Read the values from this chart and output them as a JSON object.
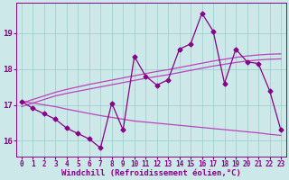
{
  "xlabel": "Windchill (Refroidissement éolien,°C)",
  "bg_color": "#cce8e8",
  "line_color": "#880088",
  "trend_color": "#bb44bb",
  "x_values": [
    0,
    1,
    2,
    3,
    4,
    5,
    6,
    7,
    8,
    9,
    10,
    11,
    12,
    13,
    14,
    15,
    16,
    17,
    18,
    19,
    20,
    21,
    22,
    23
  ],
  "y_main": [
    17.1,
    16.9,
    16.75,
    16.6,
    16.35,
    16.2,
    16.05,
    15.8,
    17.05,
    16.3,
    18.35,
    17.8,
    17.55,
    17.7,
    18.55,
    18.7,
    19.55,
    19.05,
    17.6,
    18.55,
    18.2,
    18.15,
    17.4,
    16.3
  ],
  "y_trend_up1": [
    16.95,
    17.05,
    17.15,
    17.25,
    17.32,
    17.38,
    17.44,
    17.5,
    17.56,
    17.62,
    17.68,
    17.74,
    17.79,
    17.84,
    17.9,
    17.96,
    18.02,
    18.08,
    18.13,
    18.18,
    18.22,
    18.25,
    18.27,
    18.28
  ],
  "y_trend_up2": [
    17.05,
    17.15,
    17.25,
    17.35,
    17.43,
    17.5,
    17.57,
    17.63,
    17.69,
    17.75,
    17.81,
    17.87,
    17.93,
    17.98,
    18.04,
    18.1,
    18.16,
    18.22,
    18.27,
    18.32,
    18.36,
    18.39,
    18.41,
    18.42
  ],
  "y_trend_down": [
    17.1,
    17.05,
    17.0,
    16.95,
    16.88,
    16.82,
    16.76,
    16.7,
    16.65,
    16.6,
    16.55,
    16.52,
    16.49,
    16.46,
    16.43,
    16.4,
    16.37,
    16.34,
    16.31,
    16.28,
    16.25,
    16.22,
    16.18,
    16.15
  ],
  "ylim": [
    15.55,
    19.85
  ],
  "yticks": [
    16,
    17,
    18,
    19
  ],
  "xticks": [
    0,
    1,
    2,
    3,
    4,
    5,
    6,
    7,
    8,
    9,
    10,
    11,
    12,
    13,
    14,
    15,
    16,
    17,
    18,
    19,
    20,
    21,
    22,
    23
  ],
  "marker_size": 2.5,
  "line_width": 0.9,
  "font_size": 6.5
}
